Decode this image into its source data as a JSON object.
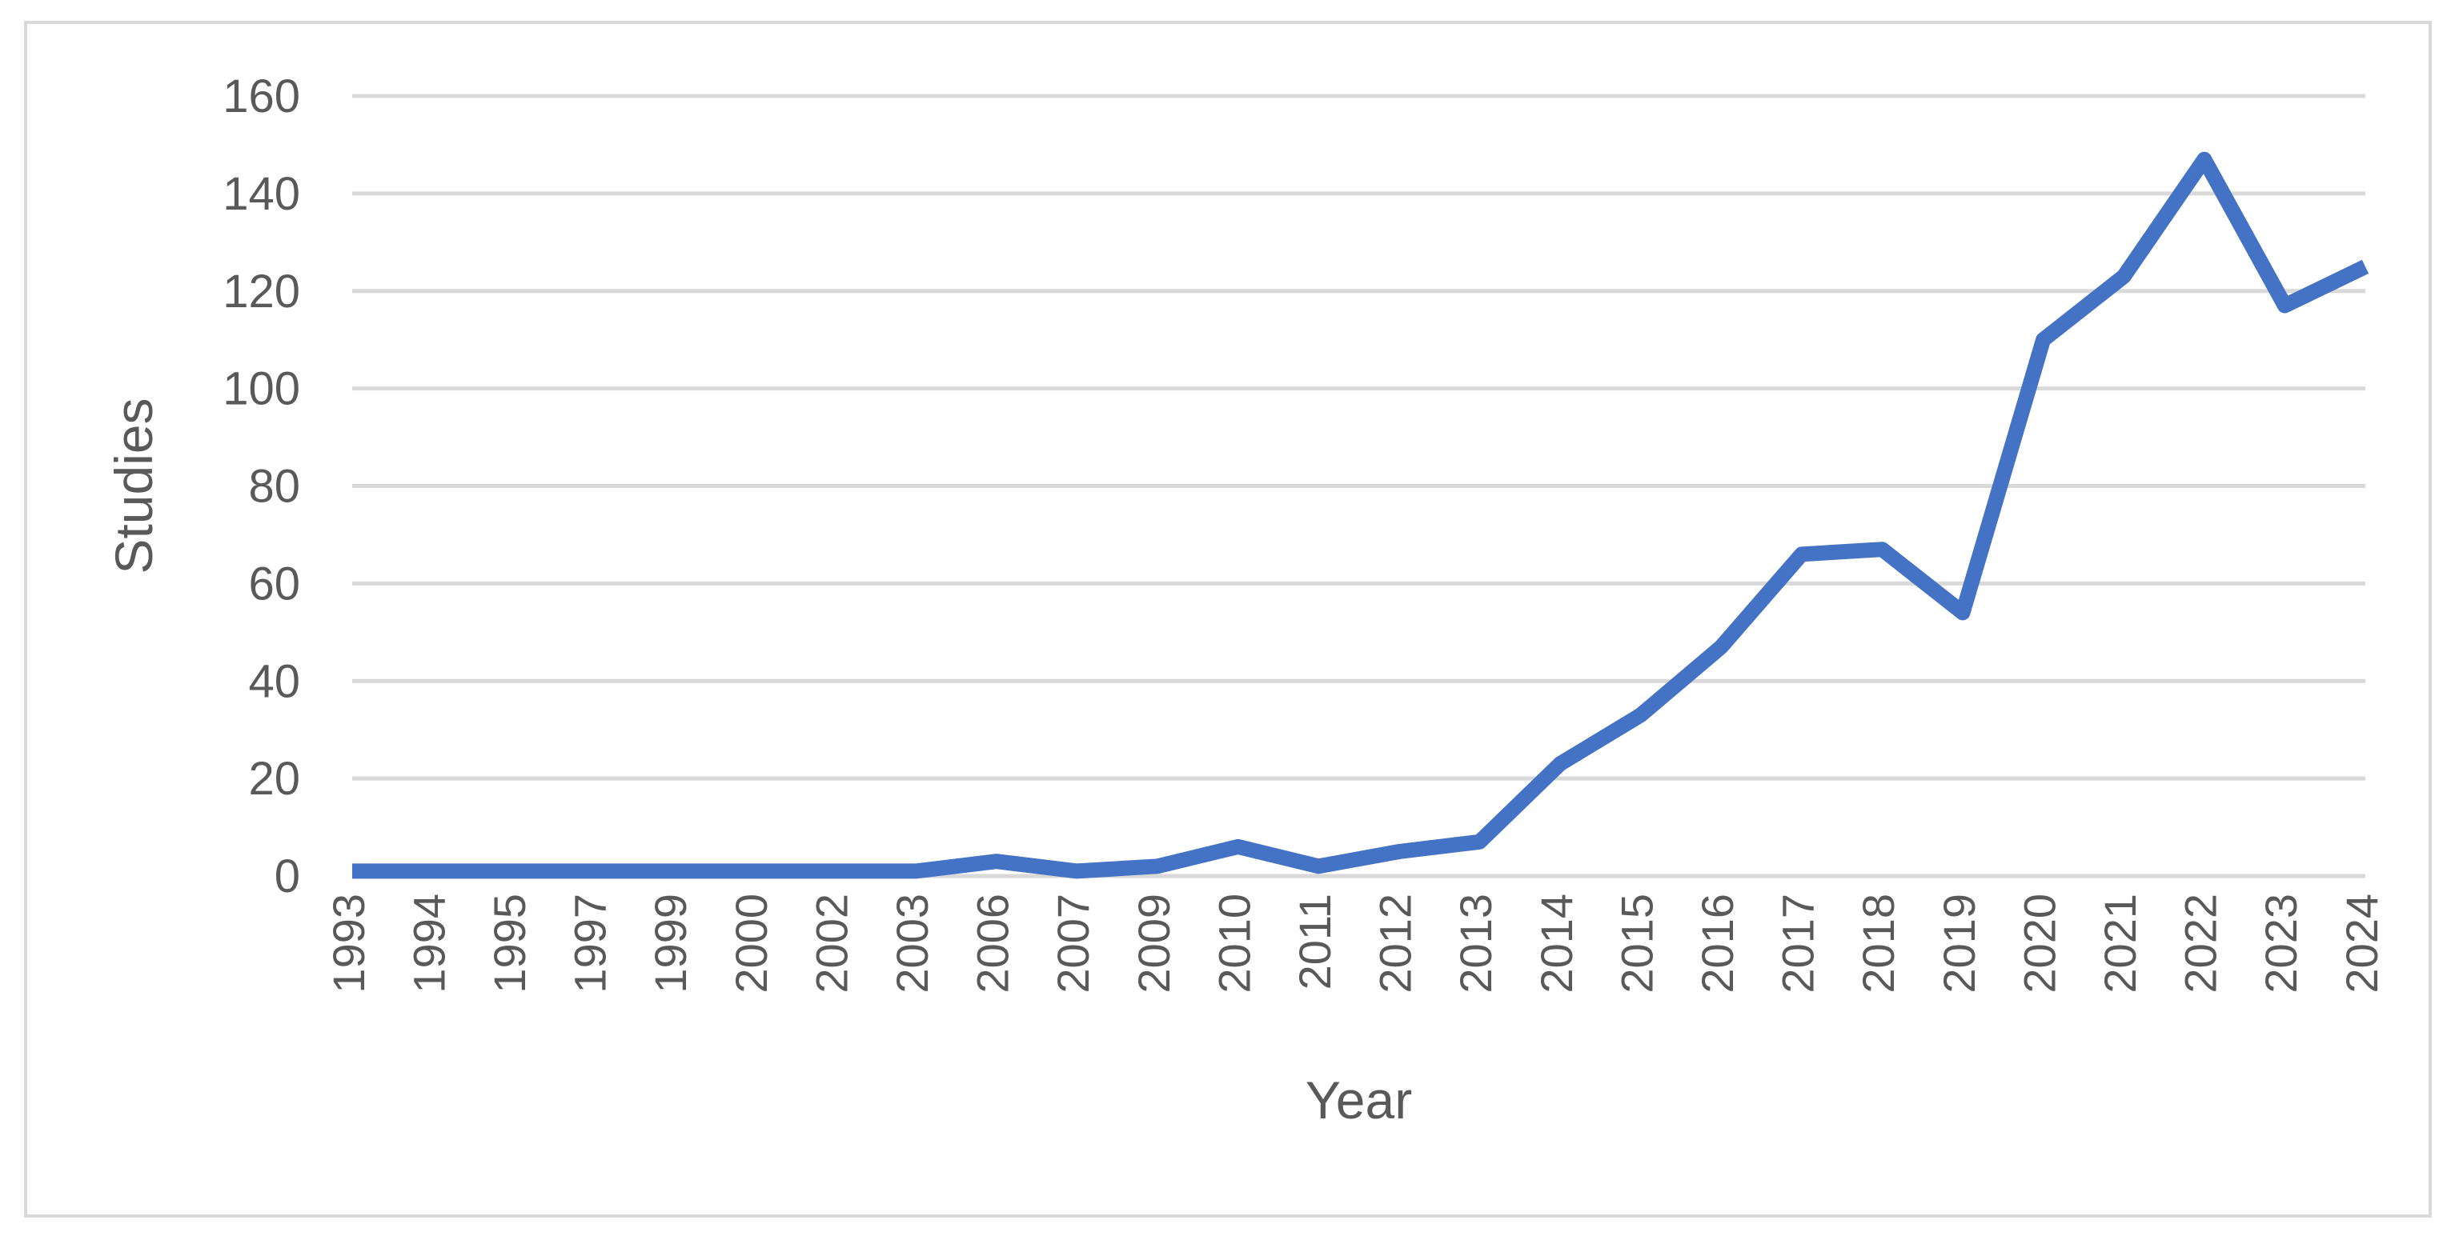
{
  "chart_data": {
    "type": "line",
    "title": "",
    "xlabel": "Year",
    "ylabel": "Studies",
    "ylim": [
      0,
      160
    ],
    "yticks": [
      "0",
      "20",
      "40",
      "60",
      "80",
      "100",
      "120",
      "140",
      "160"
    ],
    "grid": true,
    "legend": "none",
    "categories": [
      "1993",
      "1994",
      "1995",
      "1997",
      "1999",
      "2000",
      "2002",
      "2003",
      "2006",
      "2007",
      "2009",
      "2010",
      "2011",
      "2012",
      "2013",
      "2014",
      "2015",
      "2016",
      "2017",
      "2018",
      "2019",
      "2020",
      "2021",
      "2022",
      "2023",
      "2024"
    ],
    "series": [
      {
        "color": "#4472c4",
        "values": [
          1,
          1,
          1,
          1,
          1,
          1,
          1,
          1,
          3,
          1,
          2,
          6,
          2,
          5,
          7,
          23,
          33,
          47,
          66,
          67,
          54,
          110,
          123,
          147,
          117,
          125
        ]
      }
    ]
  }
}
